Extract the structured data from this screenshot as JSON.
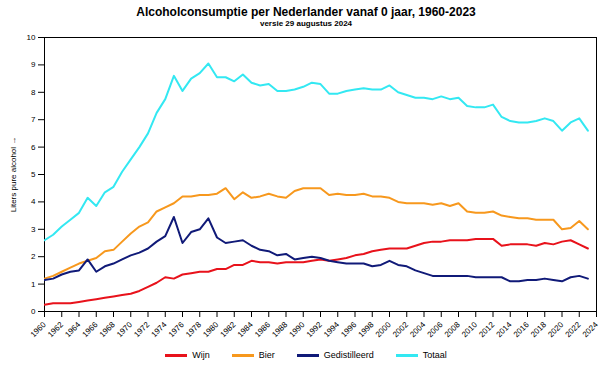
{
  "chart_data": {
    "type": "line",
    "title": "Alcoholconsumptie per Nederlander vanaf 0 jaar, 1960-2023",
    "subtitle": "versie 29 augustus 2024",
    "y_label": "Liters pure alcohol",
    "x": [
      1960,
      1961,
      1962,
      1963,
      1964,
      1965,
      1966,
      1967,
      1968,
      1969,
      1970,
      1971,
      1972,
      1973,
      1974,
      1975,
      1976,
      1977,
      1978,
      1979,
      1980,
      1981,
      1982,
      1983,
      1984,
      1985,
      1986,
      1987,
      1988,
      1989,
      1990,
      1991,
      1992,
      1993,
      1994,
      1995,
      1996,
      1997,
      1998,
      1999,
      2000,
      2001,
      2002,
      2003,
      2004,
      2005,
      2006,
      2007,
      2008,
      2009,
      2010,
      2011,
      2012,
      2013,
      2014,
      2015,
      2016,
      2017,
      2018,
      2019,
      2020,
      2021,
      2022,
      2023
    ],
    "series": [
      {
        "name": "Wijn",
        "color": "#e8121b",
        "values": [
          0.25,
          0.3,
          0.3,
          0.3,
          0.35,
          0.4,
          0.45,
          0.5,
          0.55,
          0.6,
          0.65,
          0.75,
          0.9,
          1.05,
          1.25,
          1.2,
          1.35,
          1.4,
          1.45,
          1.45,
          1.55,
          1.55,
          1.7,
          1.7,
          1.85,
          1.8,
          1.8,
          1.75,
          1.8,
          1.8,
          1.8,
          1.85,
          1.9,
          1.85,
          1.9,
          1.95,
          2.05,
          2.1,
          2.2,
          2.25,
          2.3,
          2.3,
          2.3,
          2.4,
          2.5,
          2.55,
          2.55,
          2.6,
          2.6,
          2.6,
          2.65,
          2.65,
          2.65,
          2.4,
          2.45,
          2.45,
          2.45,
          2.4,
          2.5,
          2.45,
          2.55,
          2.6,
          2.45,
          2.3
        ]
      },
      {
        "name": "Bier",
        "color": "#f7981d",
        "values": [
          1.2,
          1.3,
          1.45,
          1.6,
          1.75,
          1.85,
          1.95,
          2.2,
          2.25,
          2.55,
          2.85,
          3.1,
          3.25,
          3.65,
          3.8,
          3.95,
          4.2,
          4.2,
          4.25,
          4.25,
          4.3,
          4.5,
          4.1,
          4.35,
          4.15,
          4.2,
          4.3,
          4.2,
          4.15,
          4.4,
          4.5,
          4.5,
          4.5,
          4.25,
          4.3,
          4.25,
          4.25,
          4.3,
          4.2,
          4.2,
          4.15,
          4.0,
          3.95,
          3.95,
          3.95,
          3.9,
          3.95,
          3.85,
          3.95,
          3.65,
          3.6,
          3.6,
          3.65,
          3.5,
          3.45,
          3.4,
          3.4,
          3.35,
          3.35,
          3.35,
          3.0,
          3.05,
          3.3,
          3.0
        ]
      },
      {
        "name": "Gedistilleerd",
        "color": "#101a78",
        "values": [
          1.15,
          1.2,
          1.35,
          1.45,
          1.5,
          1.9,
          1.45,
          1.65,
          1.75,
          1.9,
          2.05,
          2.15,
          2.3,
          2.55,
          2.75,
          3.45,
          2.5,
          2.9,
          3.0,
          3.4,
          2.7,
          2.5,
          2.55,
          2.6,
          2.4,
          2.25,
          2.2,
          2.05,
          2.1,
          1.9,
          1.95,
          2.0,
          1.95,
          1.85,
          1.8,
          1.75,
          1.75,
          1.75,
          1.65,
          1.7,
          1.85,
          1.7,
          1.65,
          1.5,
          1.4,
          1.3,
          1.3,
          1.3,
          1.3,
          1.3,
          1.25,
          1.25,
          1.25,
          1.25,
          1.1,
          1.1,
          1.15,
          1.15,
          1.2,
          1.15,
          1.1,
          1.25,
          1.3,
          1.2
        ]
      },
      {
        "name": "Totaal",
        "color": "#33e8f2",
        "values": [
          2.6,
          2.8,
          3.1,
          3.35,
          3.6,
          4.15,
          3.85,
          4.35,
          4.55,
          5.1,
          5.55,
          6.0,
          6.5,
          7.25,
          7.75,
          8.6,
          8.05,
          8.5,
          8.7,
          9.05,
          8.55,
          8.55,
          8.4,
          8.65,
          8.35,
          8.25,
          8.3,
          8.05,
          8.05,
          8.1,
          8.2,
          8.35,
          8.3,
          7.95,
          7.95,
          8.05,
          8.1,
          8.15,
          8.1,
          8.1,
          8.25,
          8.0,
          7.9,
          7.8,
          7.8,
          7.75,
          7.85,
          7.75,
          7.8,
          7.5,
          7.45,
          7.45,
          7.55,
          7.1,
          6.95,
          6.9,
          6.9,
          6.95,
          7.05,
          6.95,
          6.6,
          6.9,
          7.05,
          6.6
        ]
      }
    ],
    "xlim": [
      1960,
      2024
    ],
    "xticks": [
      1960,
      1962,
      1964,
      1966,
      1968,
      1970,
      1972,
      1974,
      1976,
      1978,
      1980,
      1982,
      1984,
      1986,
      1988,
      1990,
      1992,
      1994,
      1996,
      1998,
      2000,
      2002,
      2004,
      2006,
      2008,
      2010,
      2012,
      2014,
      2016,
      2018,
      2020,
      2022,
      2024
    ],
    "ylim": [
      0,
      10
    ],
    "yticks": [
      0,
      1,
      2,
      3,
      4,
      5,
      6,
      7,
      8,
      9,
      10
    ],
    "grid": false,
    "legend": "bottom"
  }
}
